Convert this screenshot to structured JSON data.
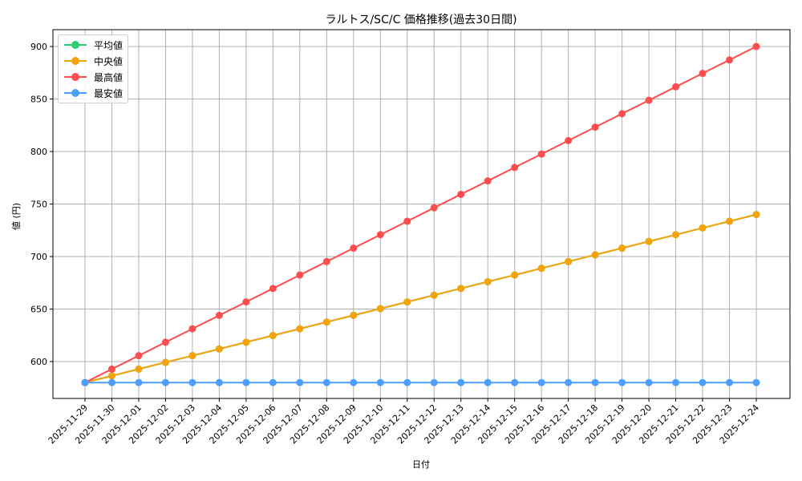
{
  "chart_data": {
    "type": "line",
    "title": "ラルトス/SC/C 価格推移(過去30日間)",
    "xlabel": "日付",
    "ylabel": "値 (円)",
    "x": [
      "2025-11-29",
      "2025-11-30",
      "2025-12-01",
      "2025-12-02",
      "2025-12-03",
      "2025-12-04",
      "2025-12-05",
      "2025-12-06",
      "2025-12-07",
      "2025-12-08",
      "2025-12-09",
      "2025-12-10",
      "2025-12-11",
      "2025-12-12",
      "2025-12-13",
      "2025-12-14",
      "2025-12-15",
      "2025-12-16",
      "2025-12-17",
      "2025-12-18",
      "2025-12-19",
      "2025-12-20",
      "2025-12-21",
      "2025-12-22",
      "2025-12-23",
      "2025-12-24"
    ],
    "yticks": [
      600,
      650,
      700,
      750,
      800,
      850,
      900
    ],
    "ylim": [
      565,
      915
    ],
    "grid": true,
    "legend_position": "upper left",
    "series": [
      {
        "name": "平均値",
        "color": "#2ecc71",
        "values": [
          580,
          586.4,
          592.8,
          599.2,
          605.6,
          612,
          618.4,
          624.8,
          631.2,
          637.6,
          644,
          650.4,
          656.8,
          663.2,
          669.6,
          676,
          682.4,
          688.8,
          695.2,
          701.6,
          708,
          714.4,
          720.8,
          727.2,
          733.6,
          740
        ]
      },
      {
        "name": "中央値",
        "color": "#f5a30a",
        "values": [
          580,
          586.4,
          592.8,
          599.2,
          605.6,
          612,
          618.4,
          624.8,
          631.2,
          637.6,
          644,
          650.4,
          656.8,
          663.2,
          669.6,
          676,
          682.4,
          688.8,
          695.2,
          701.6,
          708,
          714.4,
          720.8,
          727.2,
          733.6,
          740
        ]
      },
      {
        "name": "最高値",
        "color": "#ff4d4d",
        "values": [
          580,
          592.8,
          605.6,
          618.4,
          631.2,
          644,
          656.8,
          669.6,
          682.4,
          695.2,
          708,
          720.8,
          733.6,
          746.4,
          759.2,
          772,
          784.8,
          797.6,
          810.4,
          823.2,
          836,
          848.8,
          861.6,
          874.4,
          887.2,
          900
        ]
      },
      {
        "name": "最安値",
        "color": "#4d9fff",
        "values": [
          580,
          580,
          580,
          580,
          580,
          580,
          580,
          580,
          580,
          580,
          580,
          580,
          580,
          580,
          580,
          580,
          580,
          580,
          580,
          580,
          580,
          580,
          580,
          580,
          580,
          580
        ]
      }
    ]
  }
}
